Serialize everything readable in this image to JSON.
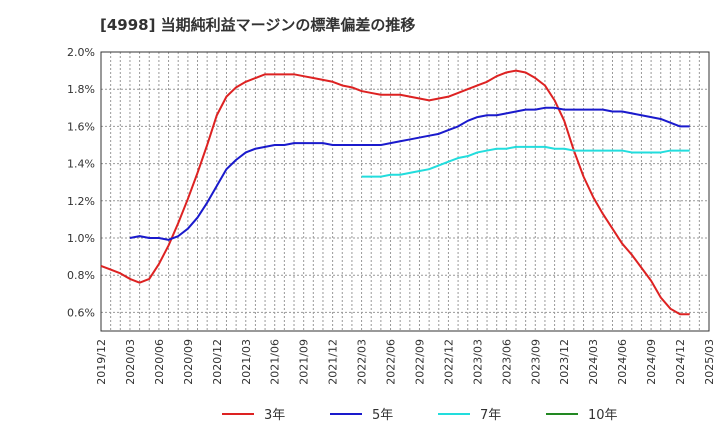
{
  "chart_data": {
    "type": "line",
    "title": "[4998]  当期純利益マージンの標準偏差の推移",
    "ylim": [
      0.5,
      2.0
    ],
    "y_ticks": [
      "0.6%",
      "0.8%",
      "1.0%",
      "1.2%",
      "1.4%",
      "1.6%",
      "1.8%",
      "2.0%"
    ],
    "y_tick_values": [
      0.6,
      0.8,
      1.0,
      1.2,
      1.4,
      1.6,
      1.8,
      2.0
    ],
    "x_ticks": [
      "2019/12",
      "2020/03",
      "2020/06",
      "2020/09",
      "2020/12",
      "2021/03",
      "2021/06",
      "2021/09",
      "2021/12",
      "2022/03",
      "2022/06",
      "2022/09",
      "2022/12",
      "2023/03",
      "2023/06",
      "2023/09",
      "2023/12",
      "2024/03",
      "2024/06",
      "2024/09",
      "2024/12",
      "2025/03"
    ],
    "x_range": [
      "2019/12",
      "2025/03"
    ],
    "grid": true,
    "legend_position": "bottom",
    "series": [
      {
        "name": "3年",
        "color": "#dd2222",
        "points": [
          [
            "2019/12",
            0.85
          ],
          [
            "2020/01",
            0.83
          ],
          [
            "2020/02",
            0.81
          ],
          [
            "2020/03",
            0.78
          ],
          [
            "2020/04",
            0.76
          ],
          [
            "2020/05",
            0.78
          ],
          [
            "2020/06",
            0.86
          ],
          [
            "2020/07",
            0.96
          ],
          [
            "2020/08",
            1.08
          ],
          [
            "2020/09",
            1.21
          ],
          [
            "2020/10",
            1.35
          ],
          [
            "2020/11",
            1.5
          ],
          [
            "2020/12",
            1.66
          ],
          [
            "2021/01",
            1.76
          ],
          [
            "2021/02",
            1.81
          ],
          [
            "2021/03",
            1.84
          ],
          [
            "2021/04",
            1.86
          ],
          [
            "2021/05",
            1.88
          ],
          [
            "2021/06",
            1.88
          ],
          [
            "2021/07",
            1.88
          ],
          [
            "2021/08",
            1.88
          ],
          [
            "2021/09",
            1.87
          ],
          [
            "2021/10",
            1.86
          ],
          [
            "2021/11",
            1.85
          ],
          [
            "2021/12",
            1.84
          ],
          [
            "2022/01",
            1.82
          ],
          [
            "2022/02",
            1.81
          ],
          [
            "2022/03",
            1.79
          ],
          [
            "2022/04",
            1.78
          ],
          [
            "2022/05",
            1.77
          ],
          [
            "2022/06",
            1.77
          ],
          [
            "2022/07",
            1.77
          ],
          [
            "2022/08",
            1.76
          ],
          [
            "2022/09",
            1.75
          ],
          [
            "2022/10",
            1.74
          ],
          [
            "2022/11",
            1.75
          ],
          [
            "2022/12",
            1.76
          ],
          [
            "2023/01",
            1.78
          ],
          [
            "2023/02",
            1.8
          ],
          [
            "2023/03",
            1.82
          ],
          [
            "2023/04",
            1.84
          ],
          [
            "2023/05",
            1.87
          ],
          [
            "2023/06",
            1.89
          ],
          [
            "2023/07",
            1.9
          ],
          [
            "2023/08",
            1.89
          ],
          [
            "2023/09",
            1.86
          ],
          [
            "2023/10",
            1.82
          ],
          [
            "2023/11",
            1.74
          ],
          [
            "2023/12",
            1.63
          ],
          [
            "2024/01",
            1.47
          ],
          [
            "2024/02",
            1.33
          ],
          [
            "2024/03",
            1.22
          ],
          [
            "2024/04",
            1.13
          ],
          [
            "2024/05",
            1.05
          ],
          [
            "2024/06",
            0.97
          ],
          [
            "2024/07",
            0.91
          ],
          [
            "2024/08",
            0.84
          ],
          [
            "2024/09",
            0.77
          ],
          [
            "2024/10",
            0.68
          ],
          [
            "2024/11",
            0.62
          ],
          [
            "2024/12",
            0.59
          ],
          [
            "2025/01",
            0.59
          ]
        ]
      },
      {
        "name": "5年",
        "color": "#1a1acc",
        "points": [
          [
            "2020/03",
            1.0
          ],
          [
            "2020/04",
            1.01
          ],
          [
            "2020/05",
            1.0
          ],
          [
            "2020/06",
            1.0
          ],
          [
            "2020/07",
            0.99
          ],
          [
            "2020/08",
            1.01
          ],
          [
            "2020/09",
            1.05
          ],
          [
            "2020/10",
            1.11
          ],
          [
            "2020/11",
            1.19
          ],
          [
            "2020/12",
            1.28
          ],
          [
            "2021/01",
            1.37
          ],
          [
            "2021/02",
            1.42
          ],
          [
            "2021/03",
            1.46
          ],
          [
            "2021/04",
            1.48
          ],
          [
            "2021/05",
            1.49
          ],
          [
            "2021/06",
            1.5
          ],
          [
            "2021/07",
            1.5
          ],
          [
            "2021/08",
            1.51
          ],
          [
            "2021/09",
            1.51
          ],
          [
            "2021/10",
            1.51
          ],
          [
            "2021/11",
            1.51
          ],
          [
            "2021/12",
            1.5
          ],
          [
            "2022/01",
            1.5
          ],
          [
            "2022/02",
            1.5
          ],
          [
            "2022/03",
            1.5
          ],
          [
            "2022/04",
            1.5
          ],
          [
            "2022/05",
            1.5
          ],
          [
            "2022/06",
            1.51
          ],
          [
            "2022/07",
            1.52
          ],
          [
            "2022/08",
            1.53
          ],
          [
            "2022/09",
            1.54
          ],
          [
            "2022/10",
            1.55
          ],
          [
            "2022/11",
            1.56
          ],
          [
            "2022/12",
            1.58
          ],
          [
            "2023/01",
            1.6
          ],
          [
            "2023/02",
            1.63
          ],
          [
            "2023/03",
            1.65
          ],
          [
            "2023/04",
            1.66
          ],
          [
            "2023/05",
            1.66
          ],
          [
            "2023/06",
            1.67
          ],
          [
            "2023/07",
            1.68
          ],
          [
            "2023/08",
            1.69
          ],
          [
            "2023/09",
            1.69
          ],
          [
            "2023/10",
            1.7
          ],
          [
            "2023/11",
            1.7
          ],
          [
            "2023/12",
            1.69
          ],
          [
            "2024/01",
            1.69
          ],
          [
            "2024/02",
            1.69
          ],
          [
            "2024/03",
            1.69
          ],
          [
            "2024/04",
            1.69
          ],
          [
            "2024/05",
            1.68
          ],
          [
            "2024/06",
            1.68
          ],
          [
            "2024/07",
            1.67
          ],
          [
            "2024/08",
            1.66
          ],
          [
            "2024/09",
            1.65
          ],
          [
            "2024/10",
            1.64
          ],
          [
            "2024/11",
            1.62
          ],
          [
            "2024/12",
            1.6
          ],
          [
            "2025/01",
            1.6
          ]
        ]
      },
      {
        "name": "7年",
        "color": "#22dddd",
        "points": [
          [
            "2022/03",
            1.33
          ],
          [
            "2022/04",
            1.33
          ],
          [
            "2022/05",
            1.33
          ],
          [
            "2022/06",
            1.34
          ],
          [
            "2022/07",
            1.34
          ],
          [
            "2022/08",
            1.35
          ],
          [
            "2022/09",
            1.36
          ],
          [
            "2022/10",
            1.37
          ],
          [
            "2022/11",
            1.39
          ],
          [
            "2022/12",
            1.41
          ],
          [
            "2023/01",
            1.43
          ],
          [
            "2023/02",
            1.44
          ],
          [
            "2023/03",
            1.46
          ],
          [
            "2023/04",
            1.47
          ],
          [
            "2023/05",
            1.48
          ],
          [
            "2023/06",
            1.48
          ],
          [
            "2023/07",
            1.49
          ],
          [
            "2023/08",
            1.49
          ],
          [
            "2023/09",
            1.49
          ],
          [
            "2023/10",
            1.49
          ],
          [
            "2023/11",
            1.48
          ],
          [
            "2023/12",
            1.48
          ],
          [
            "2024/01",
            1.47
          ],
          [
            "2024/02",
            1.47
          ],
          [
            "2024/03",
            1.47
          ],
          [
            "2024/04",
            1.47
          ],
          [
            "2024/05",
            1.47
          ],
          [
            "2024/06",
            1.47
          ],
          [
            "2024/07",
            1.46
          ],
          [
            "2024/08",
            1.46
          ],
          [
            "2024/09",
            1.46
          ],
          [
            "2024/10",
            1.46
          ],
          [
            "2024/11",
            1.47
          ],
          [
            "2024/12",
            1.47
          ],
          [
            "2025/01",
            1.47
          ]
        ]
      },
      {
        "name": "10年",
        "color": "#228822",
        "points": []
      }
    ]
  }
}
